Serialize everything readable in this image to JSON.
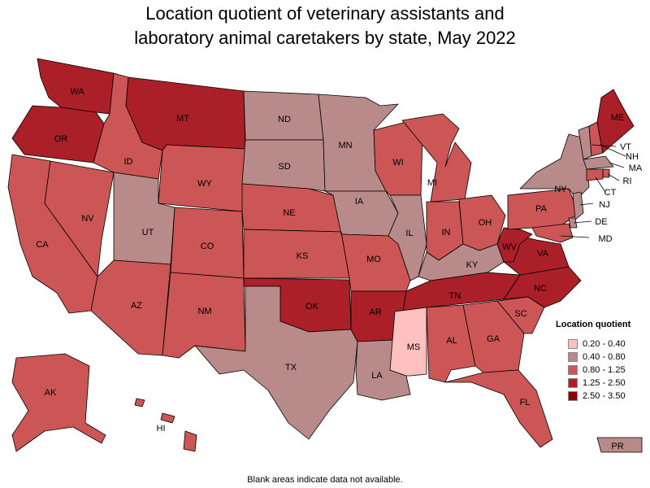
{
  "title_line1": "Location quotient of veterinary assistants and",
  "title_line2": "laboratory animal caretakers by state, May 2022",
  "legend": {
    "title": "Location quotient",
    "items": [
      {
        "label": "0.20 - 0.40",
        "color": "#ffc0c0"
      },
      {
        "label": "0.40 - 0.80",
        "color": "#b98a8a"
      },
      {
        "label": "0.80 - 1.25",
        "color": "#cc5555"
      },
      {
        "label": "1.25 - 2.50",
        "color": "#aa1f28"
      },
      {
        "label": "2.50 - 3.50",
        "color": "#8b0000"
      }
    ]
  },
  "footnote": "Blank areas indicate data not available.",
  "states": [
    {
      "abbr": "WA",
      "bin": 3
    },
    {
      "abbr": "OR",
      "bin": 3
    },
    {
      "abbr": "CA",
      "bin": 2
    },
    {
      "abbr": "NV",
      "bin": 2
    },
    {
      "abbr": "ID",
      "bin": 2
    },
    {
      "abbr": "MT",
      "bin": 3
    },
    {
      "abbr": "WY",
      "bin": 2
    },
    {
      "abbr": "UT",
      "bin": 1
    },
    {
      "abbr": "AZ",
      "bin": 2
    },
    {
      "abbr": "CO",
      "bin": 2
    },
    {
      "abbr": "NM",
      "bin": 2
    },
    {
      "abbr": "ND",
      "bin": 1
    },
    {
      "abbr": "SD",
      "bin": 1
    },
    {
      "abbr": "NE",
      "bin": 2
    },
    {
      "abbr": "KS",
      "bin": 2
    },
    {
      "abbr": "OK",
      "bin": 3
    },
    {
      "abbr": "TX",
      "bin": 1
    },
    {
      "abbr": "MN",
      "bin": 1
    },
    {
      "abbr": "IA",
      "bin": 1
    },
    {
      "abbr": "MO",
      "bin": 2
    },
    {
      "abbr": "AR",
      "bin": 3
    },
    {
      "abbr": "LA",
      "bin": 1
    },
    {
      "abbr": "WI",
      "bin": 2
    },
    {
      "abbr": "IL",
      "bin": 1
    },
    {
      "abbr": "MI",
      "bin": 2
    },
    {
      "abbr": "IN",
      "bin": 2
    },
    {
      "abbr": "OH",
      "bin": 2
    },
    {
      "abbr": "KY",
      "bin": 1
    },
    {
      "abbr": "TN",
      "bin": 3
    },
    {
      "abbr": "MS",
      "bin": 0
    },
    {
      "abbr": "AL",
      "bin": 2
    },
    {
      "abbr": "GA",
      "bin": 2
    },
    {
      "abbr": "FL",
      "bin": 2
    },
    {
      "abbr": "SC",
      "bin": 2
    },
    {
      "abbr": "NC",
      "bin": 3
    },
    {
      "abbr": "VA",
      "bin": 3
    },
    {
      "abbr": "WV",
      "bin": 3
    },
    {
      "abbr": "PA",
      "bin": 2
    },
    {
      "abbr": "NY",
      "bin": 1
    },
    {
      "abbr": "VT",
      "bin": 1
    },
    {
      "abbr": "NH",
      "bin": 2
    },
    {
      "abbr": "ME",
      "bin": 3
    },
    {
      "abbr": "MA",
      "bin": 1
    },
    {
      "abbr": "RI",
      "bin": 2
    },
    {
      "abbr": "CT",
      "bin": 2
    },
    {
      "abbr": "NJ",
      "bin": 1
    },
    {
      "abbr": "DE",
      "bin": 1
    },
    {
      "abbr": "MD",
      "bin": 2
    },
    {
      "abbr": "AK",
      "bin": 2
    },
    {
      "abbr": "HI",
      "bin": 2
    },
    {
      "abbr": "PR",
      "bin": 1
    }
  ]
}
